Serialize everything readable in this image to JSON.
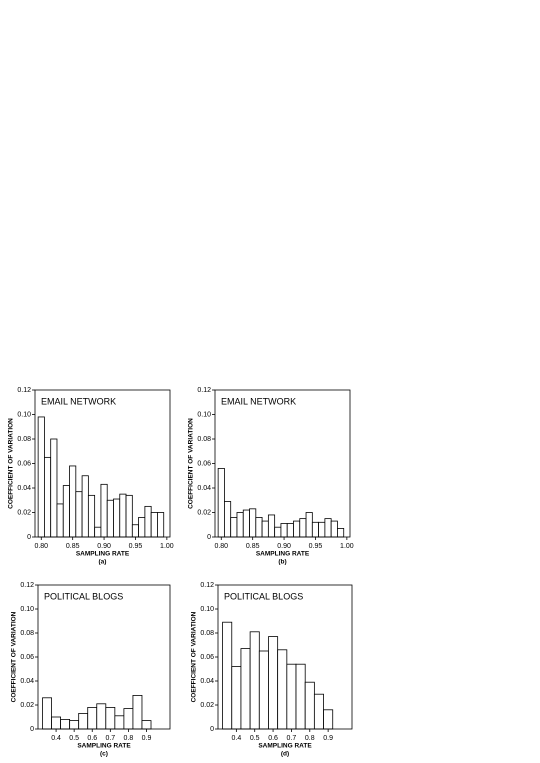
{
  "chart_data": [
    {
      "type": "bar",
      "title": "EMAIL NETWORK",
      "xlabel": "SAMPLING RATE",
      "ylabel": "COEFFICIENT OF VARIATION",
      "caption": "(a)",
      "color": "#ffffff",
      "x": [
        0.8,
        0.81,
        0.82,
        0.83,
        0.84,
        0.85,
        0.86,
        0.87,
        0.88,
        0.89,
        0.9,
        0.91,
        0.92,
        0.93,
        0.94,
        0.95,
        0.96,
        0.97,
        0.98,
        0.99
      ],
      "values": [
        0.098,
        0.065,
        0.08,
        0.027,
        0.042,
        0.058,
        0.037,
        0.05,
        0.034,
        0.008,
        0.043,
        0.03,
        0.031,
        0.035,
        0.034,
        0.01,
        0.016,
        0.025,
        0.02,
        0.02
      ],
      "xlim": [
        0.79,
        1.005
      ],
      "xticks": [
        {
          "value": 0.8,
          "label": "0.80"
        },
        0.85,
        {
          "value": 0.9,
          "label": "0.90"
        },
        0.95,
        {
          "value": 1.0,
          "label": "1.00"
        }
      ],
      "ylim": [
        0,
        0.12
      ],
      "yticks": [
        0,
        0.02,
        0.04,
        0.06,
        0.08,
        {
          "value": 0.1,
          "label": "0.10"
        },
        0.12
      ]
    },
    {
      "type": "bar",
      "title": "EMAIL NETWORK",
      "xlabel": "SAMPLING RATE",
      "ylabel": "COEFFICIENT OF VARIATION",
      "caption": "(b)",
      "color": "#ffffff",
      "x": [
        0.8,
        0.81,
        0.82,
        0.83,
        0.84,
        0.85,
        0.86,
        0.87,
        0.88,
        0.89,
        0.9,
        0.91,
        0.92,
        0.93,
        0.94,
        0.95,
        0.96,
        0.97,
        0.98,
        0.99
      ],
      "values": [
        0.056,
        0.029,
        0.016,
        0.02,
        0.022,
        0.023,
        0.016,
        0.013,
        0.018,
        0.008,
        0.011,
        0.011,
        0.013,
        0.015,
        0.02,
        0.012,
        0.012,
        0.015,
        0.013,
        0.007
      ],
      "xlim": [
        0.79,
        1.005
      ],
      "xticks": [
        {
          "value": 0.8,
          "label": "0.80"
        },
        0.85,
        {
          "value": 0.9,
          "label": "0.90"
        },
        0.95,
        {
          "value": 1.0,
          "label": "1.00"
        }
      ],
      "ylim": [
        0,
        0.12
      ],
      "yticks": [
        0,
        0.02,
        0.04,
        0.06,
        0.08,
        {
          "value": 0.1,
          "label": "0.10"
        },
        0.12
      ]
    },
    {
      "type": "bar",
      "title": "POLITICAL BLOGS",
      "xlabel": "SAMPLING RATE",
      "ylabel": "COEFFICIENT OF VARIATION",
      "caption": "(c)",
      "color": "#ffffff",
      "x": [
        0.35,
        0.4,
        0.45,
        0.5,
        0.55,
        0.6,
        0.65,
        0.7,
        0.75,
        0.8,
        0.85,
        0.9
      ],
      "values": [
        0.026,
        0.01,
        0.008,
        0.007,
        0.013,
        0.018,
        0.021,
        0.018,
        0.011,
        0.017,
        0.028,
        0.007
      ],
      "xlim": [
        0.3,
        1.03
      ],
      "xticks": [
        0.4,
        0.5,
        0.6,
        0.7,
        0.8,
        0.9
      ],
      "ylim": [
        0,
        0.12
      ],
      "yticks": [
        0,
        0.02,
        0.04,
        0.06,
        0.08,
        {
          "value": 0.1,
          "label": "0.10"
        },
        0.12
      ]
    },
    {
      "type": "bar",
      "title": "POLITICAL BLOGS",
      "xlabel": "SAMPLING RATE",
      "ylabel": "COEFFICIENT OF VARIATION",
      "caption": "(d)",
      "color": "#ffffff",
      "x": [
        0.35,
        0.4,
        0.45,
        0.5,
        0.55,
        0.6,
        0.65,
        0.7,
        0.75,
        0.8,
        0.85,
        0.9
      ],
      "values": [
        0.089,
        0.052,
        0.067,
        0.081,
        0.065,
        0.077,
        0.066,
        0.054,
        0.054,
        0.039,
        0.029,
        0.016
      ],
      "xlim": [
        0.3,
        1.03
      ],
      "xticks": [
        0.4,
        0.5,
        0.6,
        0.7,
        0.8,
        0.9
      ],
      "ylim": [
        0,
        0.12
      ],
      "yticks": [
        0,
        0.02,
        0.04,
        0.06,
        0.08,
        {
          "value": 0.1,
          "label": "0.10"
        },
        0.12
      ]
    }
  ]
}
